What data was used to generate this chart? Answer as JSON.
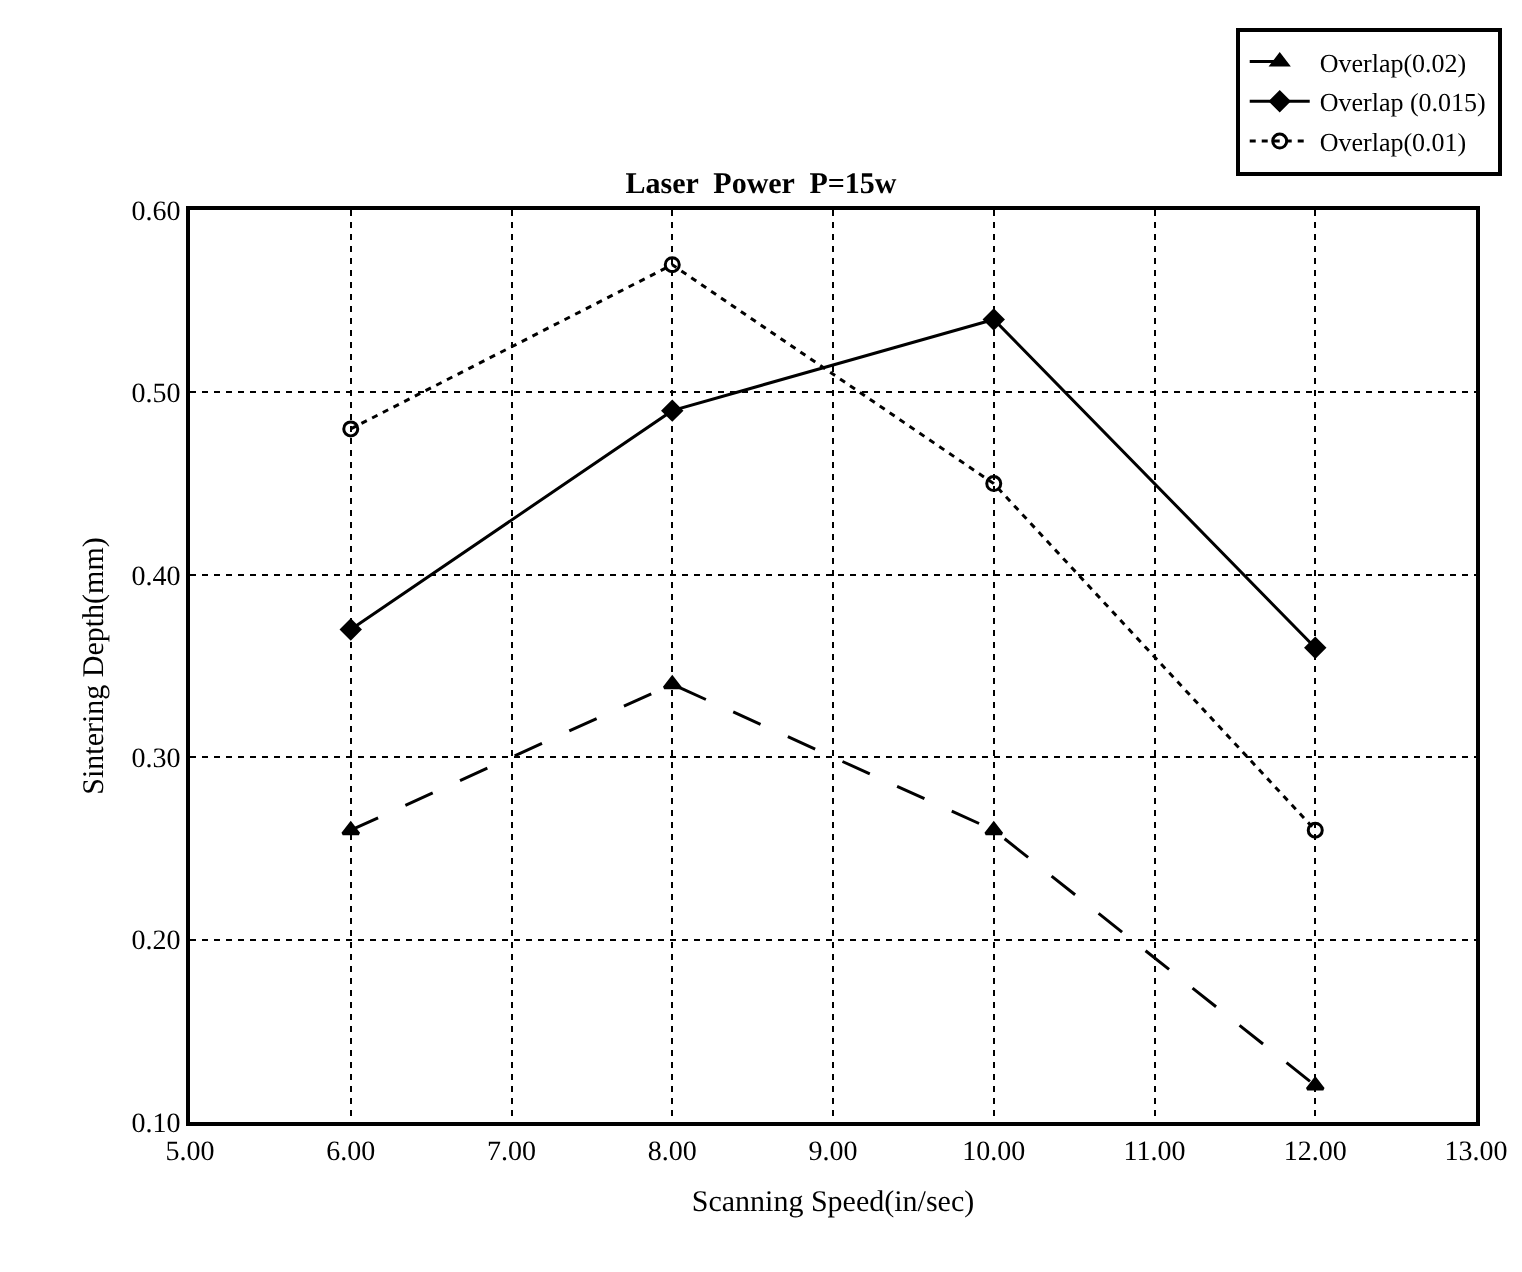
{
  "chart_data": {
    "type": "line",
    "title": "Laser  Power  P=15w",
    "xlabel": "Scanning Speed(in/sec)",
    "ylabel": "Sintering Depth(mm)",
    "x": [
      6,
      8,
      10,
      12
    ],
    "series": [
      {
        "name": "Overlap(0.02)",
        "color": "#000000",
        "marker": "triangle",
        "line_style": "dashed",
        "values": [
          0.26,
          0.34,
          0.26,
          0.12
        ]
      },
      {
        "name": "Overlap (0.015)",
        "color": "#000000",
        "marker": "diamond",
        "line_style": "solid",
        "values": [
          0.37,
          0.49,
          0.54,
          0.36
        ]
      },
      {
        "name": "Overlap(0.01)",
        "color": "#000000",
        "marker": "circle",
        "line_style": "dotted",
        "values": [
          0.48,
          0.57,
          0.45,
          0.26
        ]
      }
    ],
    "xlim": [
      5,
      13
    ],
    "xticks": [
      {
        "value": 5,
        "label": "5.00"
      },
      {
        "value": 6,
        "label": "6.00"
      },
      {
        "value": 7,
        "label": "7.00"
      },
      {
        "value": 8,
        "label": "8.00"
      },
      {
        "value": 9,
        "label": "9.00"
      },
      {
        "value": 10,
        "label": "10.00"
      },
      {
        "value": 11,
        "label": "11.00"
      },
      {
        "value": 12,
        "label": "12.00"
      },
      {
        "value": 13,
        "label": "13.00"
      }
    ],
    "ylim": [
      0.1,
      0.6
    ],
    "yticks": [
      {
        "value": 0.1,
        "label": "0.10"
      },
      {
        "value": 0.2,
        "label": "0.20"
      },
      {
        "value": 0.3,
        "label": "0.30"
      },
      {
        "value": 0.4,
        "label": "0.40"
      },
      {
        "value": 0.5,
        "label": "0.50"
      },
      {
        "value": 0.6,
        "label": "0.60"
      }
    ],
    "grid": true,
    "legend": "top right"
  }
}
